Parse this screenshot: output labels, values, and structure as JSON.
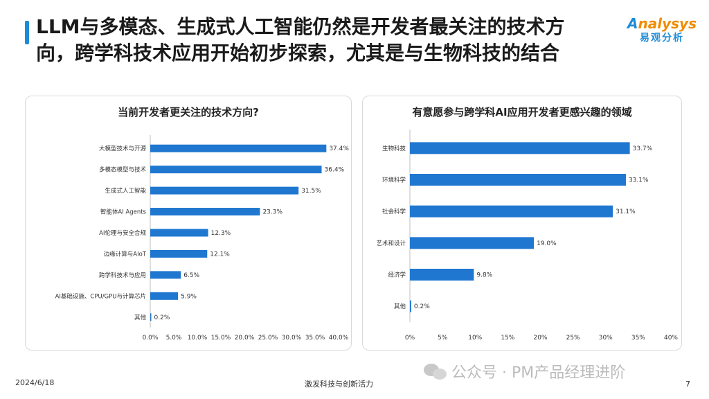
{
  "header": {
    "title_line1": "LLM与多模态、生成式人工智能仍然是开发者最关注的技术方",
    "title_line2": "向，跨学科技术应用开始初步探索，尤其是与生物科技的结合",
    "accent_color": "#1f8bd6"
  },
  "logo": {
    "en": "nalysys",
    "en_prefix": "A",
    "cn": "易观分析"
  },
  "footer": {
    "date": "2024/6/18",
    "center": "激发科技与创新活力",
    "page": "7"
  },
  "watermark": {
    "text": "公众号 · PM产品经理进阶",
    "icon": "wechat-icon"
  },
  "chart_data": [
    {
      "type": "bar",
      "orientation": "horizontal",
      "title": "当前开发者更关注的技术方向?",
      "categories": [
        "大模型技术与开源",
        "多模态模型与技术",
        "生成式人工智能",
        "智能体AI Agents",
        "AI伦理与安全合规",
        "边缘计算与AIoT",
        "跨学科技术与应用",
        "AI基础设施、CPU/GPU与计算芯片",
        "其他"
      ],
      "values": [
        37.4,
        36.4,
        31.5,
        23.3,
        12.3,
        12.1,
        6.5,
        5.9,
        0.2
      ],
      "value_labels": [
        "37.4%",
        "36.4%",
        "31.5%",
        "23.3%",
        "12.3%",
        "12.1%",
        "6.5%",
        "5.9%",
        "0.2%"
      ],
      "xlim": [
        0,
        40
      ],
      "ticks": [
        0,
        5,
        10,
        15,
        20,
        25,
        30,
        35,
        40
      ],
      "tick_labels": [
        "0.0%",
        "5.0%",
        "10.0%",
        "15.0%",
        "20.0%",
        "25.0%",
        "30.0%",
        "35.0%",
        "40.0%"
      ],
      "bar_color": "#1f77d0"
    },
    {
      "type": "bar",
      "orientation": "horizontal",
      "title": "有意愿参与跨学科AI应用开发者更感兴趣的领域",
      "categories": [
        "生物科技",
        "环境科学",
        "社会科学",
        "艺术和设计",
        "经济学",
        "其他"
      ],
      "values": [
        33.7,
        33.1,
        31.1,
        19.0,
        9.8,
        0.2
      ],
      "value_labels": [
        "33.7%",
        "33.1%",
        "31.1%",
        "19.0%",
        "9.8%",
        "0.2%"
      ],
      "xlim": [
        0,
        40
      ],
      "ticks": [
        0,
        5,
        10,
        15,
        20,
        25,
        30,
        35,
        40
      ],
      "tick_labels": [
        "0%",
        "5%",
        "10%",
        "15%",
        "20%",
        "25%",
        "30%",
        "35%",
        "40%"
      ],
      "bar_color": "#1f77d0"
    }
  ]
}
